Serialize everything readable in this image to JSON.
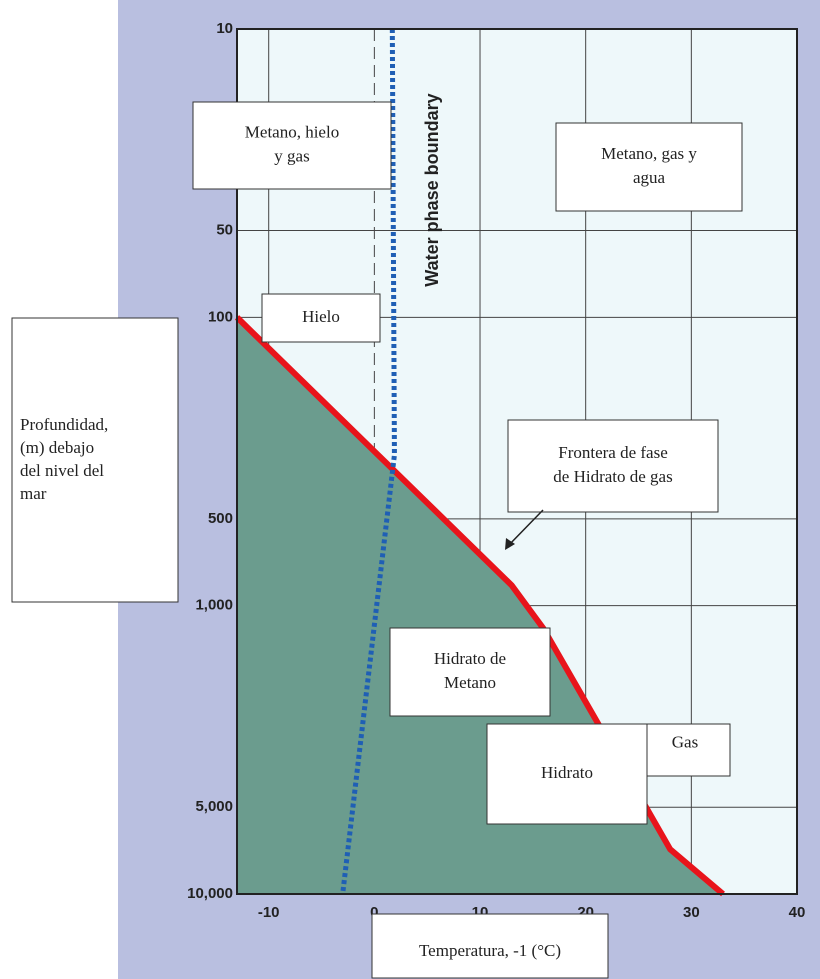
{
  "chart_data": {
    "type": "line",
    "x_label": "Temperatura, -1 (°C)",
    "y_label": [
      "Profundidad,",
      "(m) debajo",
      "del nivel del",
      "mar"
    ],
    "xlim": [
      -13,
      40
    ],
    "xticks": [
      -10,
      0,
      10,
      20,
      30,
      40
    ],
    "ylim": [
      10,
      10000
    ],
    "y_log": true,
    "y_inverted": true,
    "yticks": [
      10,
      50,
      100,
      500,
      {
        "value": 1000,
        "label": "1,000"
      },
      {
        "value": 5000,
        "label": "5,000"
      },
      {
        "value": 10000,
        "label": "10,000"
      }
    ],
    "grid": true,
    "series": [
      {
        "color": "#e8141b",
        "fill": "#6b9c8e",
        "x": [
          -13,
          13,
          16,
          21,
          28,
          33
        ],
        "values": [
          100,
          850,
          1200,
          2500,
          7000,
          10000
        ]
      },
      {
        "name": "Water phase boundary",
        "color": "#1f5fb5",
        "x": [
          1.7,
          1.9,
          -3
        ],
        "values": [
          10,
          300,
          10000
        ]
      }
    ],
    "annotations": [
      {
        "lines": [
          "Metano, hielo",
          "y gas"
        ]
      },
      {
        "lines": [
          "Metano, gas y",
          "agua"
        ]
      },
      {
        "lines": [
          "Hielo"
        ]
      },
      {
        "lines": [
          "Frontera de fase",
          "de Hidrato de gas"
        ]
      },
      {
        "lines": [
          "Hidrato de",
          "Metano"
        ]
      },
      {
        "lines": [
          "Gas"
        ]
      },
      {
        "lines": [
          "Hidrato"
        ]
      }
    ]
  }
}
